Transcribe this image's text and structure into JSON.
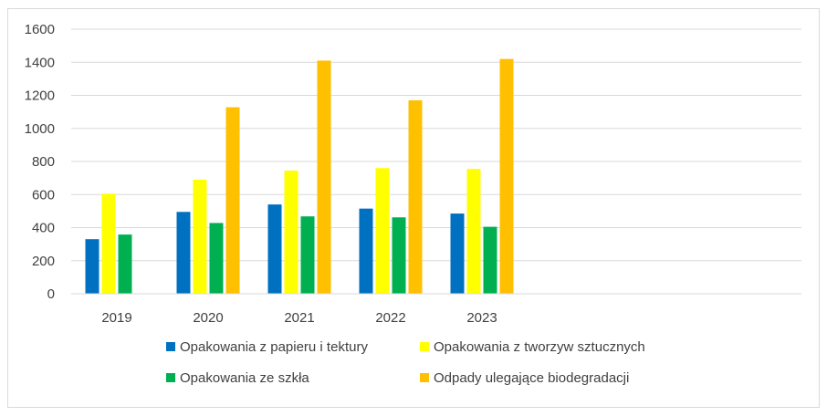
{
  "chart_data": {
    "type": "bar",
    "categories": [
      "2019",
      "2020",
      "2021",
      "2022",
      "2023",
      "",
      "",
      ""
    ],
    "series": [
      {
        "name": "Opakowania z papieru i tektury",
        "color": "#0070C0",
        "values": [
          330,
          495,
          540,
          515,
          485,
          null,
          null,
          null
        ]
      },
      {
        "name": "Opakowania z tworzyw sztucznych",
        "color": "#FFFF00",
        "values": [
          605,
          690,
          745,
          760,
          755,
          null,
          null,
          null
        ]
      },
      {
        "name": "Opakowania ze szkła",
        "color": "#00B050",
        "values": [
          358,
          428,
          468,
          462,
          405,
          null,
          null,
          null
        ]
      },
      {
        "name": "Odpady ulegające biodegradacji",
        "color": "#FFC000",
        "values": [
          null,
          1128,
          1410,
          1170,
          1420,
          null,
          null,
          null
        ]
      }
    ],
    "ylim": [
      0,
      1600
    ],
    "yticks": [
      0,
      200,
      400,
      600,
      800,
      1000,
      1200,
      1400,
      1600
    ],
    "grid": true,
    "legend_position": "bottom"
  }
}
